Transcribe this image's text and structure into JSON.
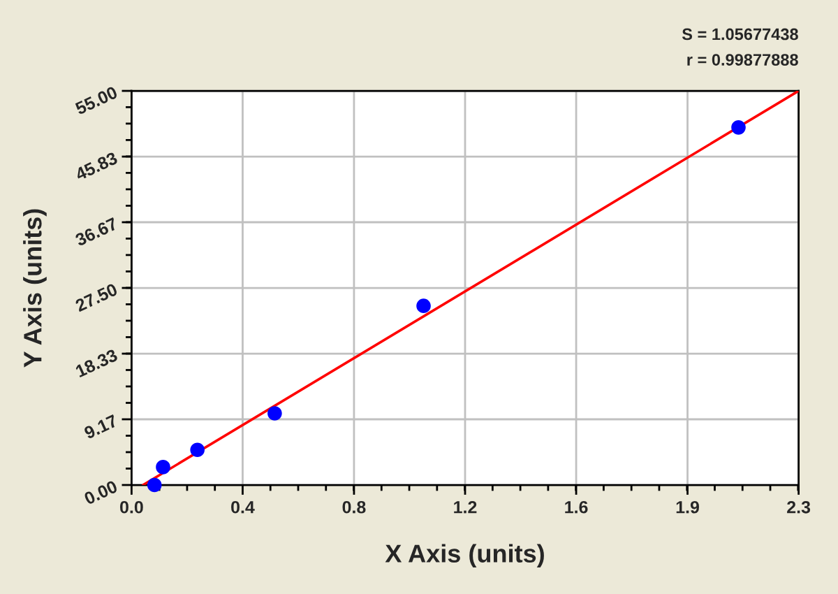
{
  "chart_data": {
    "type": "scatter",
    "xlabel": "X Axis (units)",
    "ylabel": "Y Axis (units)",
    "annotations": [
      "S = 1.05677438",
      "r = 0.99877888"
    ],
    "series": [
      {
        "color": "#0000ff",
        "x": [
          0.08,
          0.11,
          0.23,
          0.5,
          1.02,
          2.12
        ],
        "values": [
          0.0,
          2.5,
          4.9,
          10.0,
          25.0,
          49.9
        ]
      },
      {
        "type": "line",
        "color": "#ff0000",
        "marker": "none",
        "line_style": "solid",
        "x": [
          0.04,
          2.33
        ],
        "values": [
          0,
          55
        ]
      }
    ],
    "xlim": [
      0,
      2.33
    ],
    "ylim": [
      0,
      55
    ],
    "xticks": [
      {
        "value": 0,
        "label": "0.0"
      },
      {
        "value": 0.388,
        "label": "0.4"
      },
      {
        "value": 0.777,
        "label": "0.8"
      },
      {
        "value": 1.165,
        "label": "1.2"
      },
      {
        "value": 1.553,
        "label": "1.6"
      },
      {
        "value": 1.942,
        "label": "1.9"
      },
      {
        "value": 2.33,
        "label": "2.3"
      }
    ],
    "yticks": [
      {
        "value": 0,
        "label": "0.00"
      },
      {
        "value": 9.17,
        "label": "9.17"
      },
      {
        "value": 18.33,
        "label": "18.33"
      },
      {
        "value": 27.5,
        "label": "27.50"
      },
      {
        "value": 36.67,
        "label": "36.67"
      },
      {
        "value": 45.83,
        "label": "45.83"
      },
      {
        "value": 55,
        "label": "55.00"
      }
    ],
    "grid": true,
    "marker": "circle"
  }
}
